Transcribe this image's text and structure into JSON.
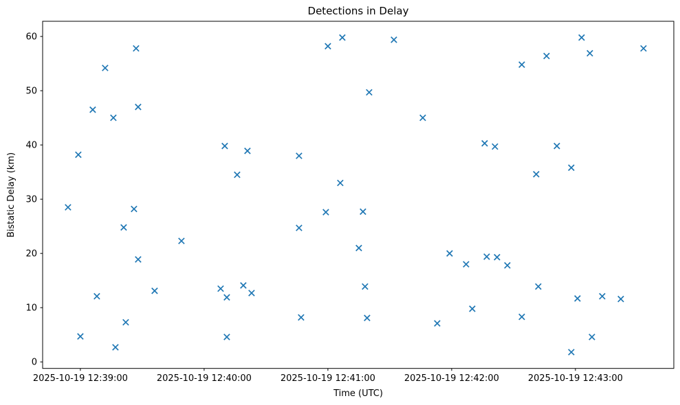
{
  "chart_data": {
    "type": "scatter",
    "title": "Detections in Delay",
    "xlabel": "Time (UTC)",
    "ylabel": "Bistatic Delay (km)",
    "marker": "x",
    "marker_color": "#1f77b4",
    "legend": "none",
    "grid": false,
    "x_anchor": "2025-10-19 12:39:00",
    "xlim_seconds_from_anchor": [
      -18.3,
      287.7
    ],
    "ylim": [
      -1.2,
      62.8
    ],
    "x_tick_labels": [
      "2025-10-19 12:39:00",
      "2025-10-19 12:40:00",
      "2025-10-19 12:41:00",
      "2025-10-19 12:42:00",
      "2025-10-19 12:43:00"
    ],
    "y_ticks": [
      0,
      10,
      20,
      30,
      40,
      50,
      60
    ],
    "points": [
      {
        "time": "2025-10-19 12:38:54",
        "delay_km": 28.5
      },
      {
        "time": "2025-10-19 12:38:59",
        "delay_km": 38.2
      },
      {
        "time": "2025-10-19 12:39:00",
        "delay_km": 4.7
      },
      {
        "time": "2025-10-19 12:39:06",
        "delay_km": 46.5
      },
      {
        "time": "2025-10-19 12:39:08",
        "delay_km": 12.1
      },
      {
        "time": "2025-10-19 12:39:12",
        "delay_km": 54.2
      },
      {
        "time": "2025-10-19 12:39:16",
        "delay_km": 45.0
      },
      {
        "time": "2025-10-19 12:39:17",
        "delay_km": 2.7
      },
      {
        "time": "2025-10-19 12:39:21",
        "delay_km": 24.8
      },
      {
        "time": "2025-10-19 12:39:22",
        "delay_km": 7.3
      },
      {
        "time": "2025-10-19 12:39:26",
        "delay_km": 28.2
      },
      {
        "time": "2025-10-19 12:39:27",
        "delay_km": 57.8
      },
      {
        "time": "2025-10-19 12:39:28",
        "delay_km": 47.0
      },
      {
        "time": "2025-10-19 12:39:28",
        "delay_km": 18.9
      },
      {
        "time": "2025-10-19 12:39:36",
        "delay_km": 13.1
      },
      {
        "time": "2025-10-19 12:39:49",
        "delay_km": 22.3
      },
      {
        "time": "2025-10-19 12:40:08",
        "delay_km": 13.5
      },
      {
        "time": "2025-10-19 12:40:10",
        "delay_km": 39.8
      },
      {
        "time": "2025-10-19 12:40:11",
        "delay_km": 11.9
      },
      {
        "time": "2025-10-19 12:40:11",
        "delay_km": 4.6
      },
      {
        "time": "2025-10-19 12:40:16",
        "delay_km": 34.5
      },
      {
        "time": "2025-10-19 12:40:19",
        "delay_km": 14.1
      },
      {
        "time": "2025-10-19 12:40:21",
        "delay_km": 38.9
      },
      {
        "time": "2025-10-19 12:40:23",
        "delay_km": 12.7
      },
      {
        "time": "2025-10-19 12:40:46",
        "delay_km": 38.0
      },
      {
        "time": "2025-10-19 12:40:46",
        "delay_km": 24.7
      },
      {
        "time": "2025-10-19 12:40:47",
        "delay_km": 8.2
      },
      {
        "time": "2025-10-19 12:40:59",
        "delay_km": 27.6
      },
      {
        "time": "2025-10-19 12:41:00",
        "delay_km": 58.2
      },
      {
        "time": "2025-10-19 12:41:06",
        "delay_km": 33.0
      },
      {
        "time": "2025-10-19 12:41:07",
        "delay_km": 59.8
      },
      {
        "time": "2025-10-19 12:41:15",
        "delay_km": 21.0
      },
      {
        "time": "2025-10-19 12:41:17",
        "delay_km": 27.7
      },
      {
        "time": "2025-10-19 12:41:18",
        "delay_km": 13.9
      },
      {
        "time": "2025-10-19 12:41:19",
        "delay_km": 8.1
      },
      {
        "time": "2025-10-19 12:41:20",
        "delay_km": 49.7
      },
      {
        "time": "2025-10-19 12:41:32",
        "delay_km": 59.4
      },
      {
        "time": "2025-10-19 12:41:46",
        "delay_km": 45.0
      },
      {
        "time": "2025-10-19 12:41:53",
        "delay_km": 7.1
      },
      {
        "time": "2025-10-19 12:41:59",
        "delay_km": 20.0
      },
      {
        "time": "2025-10-19 12:42:07",
        "delay_km": 18.0
      },
      {
        "time": "2025-10-19 12:42:10",
        "delay_km": 9.8
      },
      {
        "time": "2025-10-19 12:42:16",
        "delay_km": 40.3
      },
      {
        "time": "2025-10-19 12:42:17",
        "delay_km": 19.4
      },
      {
        "time": "2025-10-19 12:42:21",
        "delay_km": 39.7
      },
      {
        "time": "2025-10-19 12:42:22",
        "delay_km": 19.3
      },
      {
        "time": "2025-10-19 12:42:27",
        "delay_km": 17.8
      },
      {
        "time": "2025-10-19 12:42:34",
        "delay_km": 54.8
      },
      {
        "time": "2025-10-19 12:42:34",
        "delay_km": 8.3
      },
      {
        "time": "2025-10-19 12:42:41",
        "delay_km": 34.6
      },
      {
        "time": "2025-10-19 12:42:42",
        "delay_km": 13.9
      },
      {
        "time": "2025-10-19 12:42:46",
        "delay_km": 56.4
      },
      {
        "time": "2025-10-19 12:42:51",
        "delay_km": 39.8
      },
      {
        "time": "2025-10-19 12:42:58",
        "delay_km": 35.8
      },
      {
        "time": "2025-10-19 12:42:58",
        "delay_km": 1.8
      },
      {
        "time": "2025-10-19 12:43:01",
        "delay_km": 11.7
      },
      {
        "time": "2025-10-19 12:43:03",
        "delay_km": 59.8
      },
      {
        "time": "2025-10-19 12:43:07",
        "delay_km": 56.9
      },
      {
        "time": "2025-10-19 12:43:08",
        "delay_km": 4.6
      },
      {
        "time": "2025-10-19 12:43:13",
        "delay_km": 12.1
      },
      {
        "time": "2025-10-19 12:43:22",
        "delay_km": 11.6
      },
      {
        "time": "2025-10-19 12:43:33",
        "delay_km": 57.8
      }
    ]
  }
}
